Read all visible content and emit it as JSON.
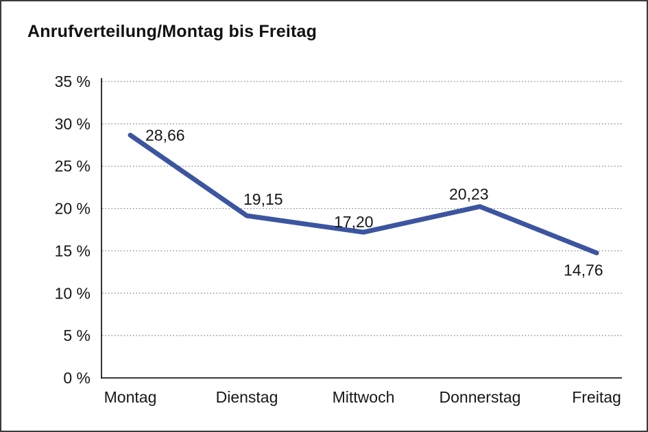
{
  "page": {
    "background": "#ffffff",
    "border_color": "#3b3b3b"
  },
  "chart_data": {
    "type": "line",
    "title": "Anrufverteilung/Montag bis Freitag",
    "categories": [
      "Montag",
      "Dienstag",
      "Mittwoch",
      "Donnerstag",
      "Freitag"
    ],
    "series": [
      {
        "name": "Anrufverteilung",
        "values": [
          28.66,
          19.15,
          17.2,
          20.23,
          14.76
        ]
      }
    ],
    "point_labels": [
      "28,66",
      "19,15",
      "17,20",
      "20,23",
      "14,76"
    ],
    "yticks": [
      {
        "value": 0,
        "label": "0 %"
      },
      {
        "value": 5,
        "label": "5 %"
      },
      {
        "value": 10,
        "label": "10 %"
      },
      {
        "value": 15,
        "label": "15 %"
      },
      {
        "value": 20,
        "label": "20 %"
      },
      {
        "value": 25,
        "label": "25 %"
      },
      {
        "value": 30,
        "label": "30 %"
      },
      {
        "value": 35,
        "label": "35 %"
      }
    ],
    "ylim": [
      0,
      35
    ],
    "xlabel": "",
    "ylabel": "",
    "legend": "none",
    "grid": "horizontal-dotted",
    "line_color": "#3c55a0",
    "grid_color": "#7d7d7d",
    "axis_color": "#1c1c1c",
    "text_color": "#161616"
  }
}
